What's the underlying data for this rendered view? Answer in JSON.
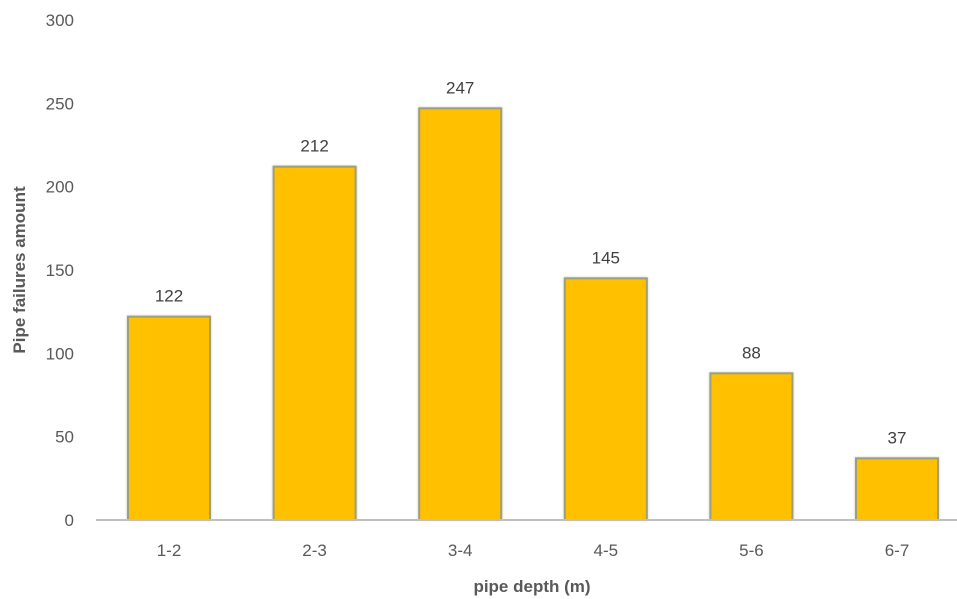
{
  "chart_data": {
    "type": "bar",
    "title": "",
    "xlabel": "pipe depth (m)",
    "ylabel": "Pipe failures amount",
    "categories": [
      "1-2",
      "2-3",
      "3-4",
      "4-5",
      "5-6",
      "6-7"
    ],
    "values": [
      122,
      212,
      247,
      145,
      88,
      37
    ],
    "data_labels": [
      "122",
      "212",
      "247",
      "145",
      "88",
      "37"
    ],
    "y_ticks": [
      "0",
      "50",
      "100",
      "150",
      "200",
      "250",
      "300"
    ],
    "ylim": [
      0,
      300
    ],
    "grid": false,
    "legend": "none",
    "colors": {
      "bar_fill": "#FFC000",
      "bar_edge": "#9E9E7A",
      "axis_line": "#BFBFBF",
      "text": "#595959"
    }
  }
}
